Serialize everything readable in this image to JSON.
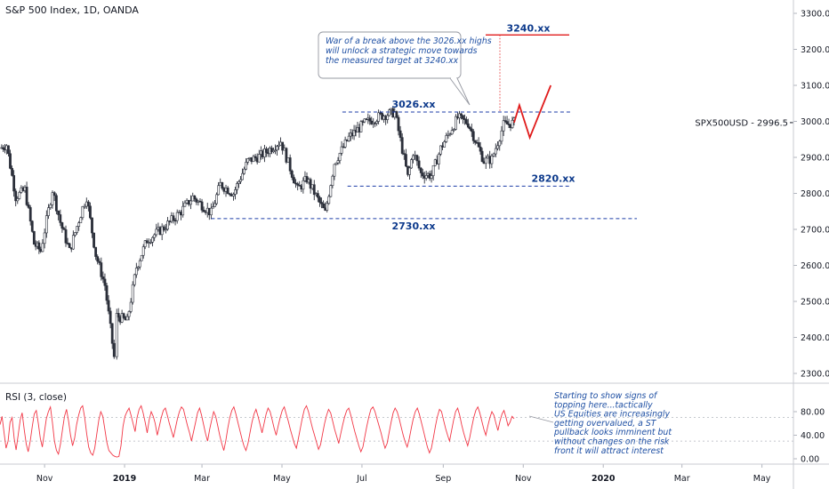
{
  "header": {
    "title": "S&P 500 Index, 1D, OANDA"
  },
  "rsi_panel": {
    "title": "RSI (3, close)"
  },
  "price_label": {
    "symbol": "SPX500USD",
    "value": "2996.5"
  },
  "annotations": {
    "callout": [
      "War of a break above the 3026.xx highs",
      "will unlock a strategic move towards",
      "the measured target at 3240.xx"
    ],
    "rsi_note": [
      "Starting to show signs of",
      "topping here...tactically",
      "US Equities are increasingly",
      "getting overvalued, a ST",
      "pullback looks imminent but",
      "without changes on the risk",
      "front it will attract interest"
    ]
  },
  "colors": {
    "candle": "#2a2e39",
    "level": "#1e3ea8",
    "target": "#e01b1b",
    "rsi": "#f23645",
    "axis_text": "#131722",
    "label_text": "#0d3a8c"
  },
  "chart_data": [
    {
      "type": "candlestick",
      "title": "S&P 500 Index, 1D, OANDA",
      "y_ticks": [
        "3300.0",
        "3200.0",
        "3100.0",
        "3000.0",
        "2900.0",
        "2800.0",
        "2700.0",
        "2600.0",
        "2500.0",
        "2400.0",
        "2300.0"
      ],
      "ylim": [
        2275,
        3340
      ],
      "x_ticks": [
        "Nov",
        "2019",
        "Mar",
        "May",
        "Jul",
        "Sep",
        "Nov",
        "2020",
        "Mar",
        "May"
      ],
      "x_tick_dates": [
        "2018-11-01",
        "2019-01-01",
        "2019-03-01",
        "2019-05-01",
        "2019-07-01",
        "2019-09-01",
        "2019-11-01",
        "2020-01-01",
        "2020-03-01",
        "2020-05-01"
      ],
      "xlim": [
        "2018-09-28",
        "2020-05-25"
      ],
      "price_path": [
        [
          "2018-09-28",
          2925
        ],
        [
          "2018-10-03",
          2935
        ],
        [
          "2018-10-10",
          2790
        ],
        [
          "2018-10-17",
          2810
        ],
        [
          "2018-10-24",
          2660
        ],
        [
          "2018-10-29",
          2640
        ],
        [
          "2018-11-07",
          2810
        ],
        [
          "2018-11-13",
          2720
        ],
        [
          "2018-11-20",
          2640
        ],
        [
          "2018-11-30",
          2760
        ],
        [
          "2018-12-03",
          2790
        ],
        [
          "2018-12-10",
          2630
        ],
        [
          "2018-12-17",
          2545
        ],
        [
          "2018-12-24",
          2345
        ],
        [
          "2018-12-26",
          2460
        ],
        [
          "2019-01-03",
          2445
        ],
        [
          "2019-01-10",
          2595
        ],
        [
          "2019-01-18",
          2670
        ],
        [
          "2019-01-31",
          2705
        ],
        [
          "2019-02-13",
          2750
        ],
        [
          "2019-02-22",
          2790
        ],
        [
          "2019-03-08",
          2745
        ],
        [
          "2019-03-15",
          2825
        ],
        [
          "2019-03-25",
          2800
        ],
        [
          "2019-04-05",
          2890
        ],
        [
          "2019-04-15",
          2905
        ],
        [
          "2019-04-30",
          2945
        ],
        [
          "2019-05-13",
          2810
        ],
        [
          "2019-05-20",
          2840
        ],
        [
          "2019-06-03",
          2745
        ],
        [
          "2019-06-10",
          2885
        ],
        [
          "2019-06-21",
          2955
        ],
        [
          "2019-07-03",
          2995
        ],
        [
          "2019-07-15",
          3015
        ],
        [
          "2019-07-26",
          3025
        ],
        [
          "2019-08-05",
          2845
        ],
        [
          "2019-08-09",
          2915
        ],
        [
          "2019-08-15",
          2855
        ],
        [
          "2019-08-23",
          2850
        ],
        [
          "2019-08-30",
          2925
        ],
        [
          "2019-09-12",
          3010
        ],
        [
          "2019-09-20",
          2995
        ],
        [
          "2019-10-02",
          2890
        ],
        [
          "2019-10-08",
          2895
        ],
        [
          "2019-10-17",
          2990
        ],
        [
          "2019-10-25",
          2996.5
        ]
      ],
      "levels": [
        {
          "label": "3026.xx",
          "value": 3026
        },
        {
          "label": "2820.xx",
          "value": 2820
        },
        {
          "label": "2730.xx",
          "value": 2730
        },
        {
          "label": "3240.xx",
          "value": 3240
        }
      ],
      "projection": [
        [
          "2019-10-25",
          2996.5
        ],
        [
          "2019-10-29",
          3045
        ],
        [
          "2019-11-06",
          2955
        ],
        [
          "2019-11-22",
          3100
        ]
      ],
      "last_value": 2996.5
    },
    {
      "type": "line",
      "title": "RSI (3, close)",
      "y_ticks": [
        "80.00",
        "40.00",
        "0.00"
      ],
      "ylim": [
        -5,
        103
      ],
      "bands": [
        70,
        30
      ],
      "xlim": [
        "2018-09-28",
        "2020-05-25"
      ],
      "values": [
        58,
        72,
        45,
        18,
        30,
        62,
        70,
        35,
        15,
        40,
        66,
        78,
        50,
        25,
        12,
        30,
        55,
        76,
        82,
        60,
        35,
        20,
        45,
        68,
        80,
        88,
        62,
        30,
        14,
        8,
        25,
        50,
        72,
        84,
        64,
        40,
        22,
        35,
        58,
        74,
        86,
        90,
        70,
        42,
        20,
        10,
        6,
        18,
        42,
        66,
        80,
        72,
        50,
        28,
        14,
        10,
        6,
        4,
        3,
        4,
        22,
        55,
        72,
        80,
        86,
        74,
        60,
        46,
        70,
        84,
        90,
        78,
        62,
        44,
        66,
        80,
        72,
        60,
        40,
        55,
        70,
        82,
        86,
        74,
        60,
        48,
        36,
        52,
        68,
        80,
        88,
        84,
        70,
        56,
        44,
        30,
        46,
        62,
        78,
        86,
        74,
        58,
        42,
        30,
        50,
        66,
        80,
        72,
        56,
        40,
        26,
        14,
        30,
        52,
        70,
        82,
        88,
        76,
        62,
        48,
        34,
        22,
        14,
        26,
        44,
        62,
        76,
        84,
        72,
        58,
        44,
        60,
        76,
        86,
        80,
        66,
        52,
        40,
        56,
        70,
        82,
        88,
        76,
        64,
        50,
        38,
        26,
        18,
        34,
        52,
        70,
        84,
        90,
        80,
        66,
        52,
        40,
        28,
        16,
        24,
        42,
        60,
        74,
        84,
        78,
        64,
        50,
        38,
        26,
        42,
        58,
        72,
        82,
        86,
        74,
        60,
        46,
        34,
        22,
        12,
        20,
        38,
        56,
        72,
        84,
        88,
        80,
        68,
        56,
        44,
        30,
        18,
        26,
        44,
        62,
        78,
        86,
        80,
        68,
        54,
        40,
        28,
        20,
        34,
        52,
        68,
        80,
        86,
        76,
        62,
        48,
        34,
        20,
        10,
        18,
        36,
        56,
        72,
        84,
        80,
        66,
        52,
        40,
        30,
        48,
        66,
        80,
        86,
        74,
        58,
        44,
        32,
        22,
        36,
        54,
        70,
        82,
        88,
        78,
        64,
        50,
        40,
        56,
        70,
        80,
        74,
        60,
        48,
        64,
        76,
        82,
        70,
        56,
        62,
        72,
        68
      ]
    }
  ]
}
